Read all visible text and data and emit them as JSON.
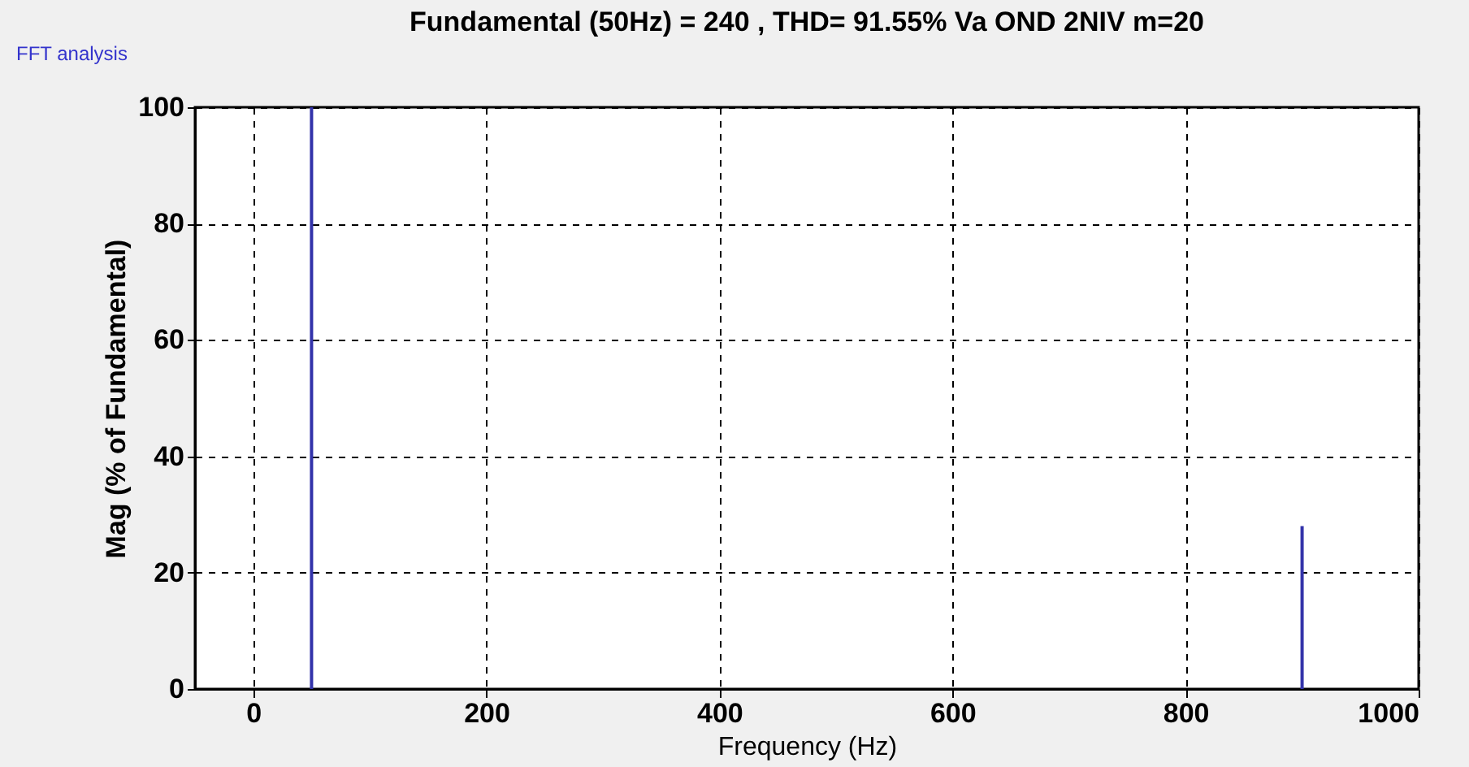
{
  "chart_data": {
    "type": "bar",
    "title": "Fundamental (50Hz) = 240 , THD= 91.55%   Va  OND 2NIV m=20",
    "xlabel": "Frequency (Hz)",
    "ylabel": "Mag (% of Fundamental)",
    "x": [
      50,
      900
    ],
    "series": [
      {
        "color": "#3333aa",
        "values": [
          100,
          28
        ]
      }
    ],
    "xlim": [
      -50,
      1000
    ],
    "xticks": [
      0,
      200,
      400,
      600,
      800,
      1000
    ],
    "ylim": [
      0,
      100
    ],
    "yticks": [
      0,
      20,
      40,
      60,
      80,
      100
    ],
    "grid": true,
    "line_style": "dashed",
    "annotations": [
      "FFT analysis"
    ]
  }
}
